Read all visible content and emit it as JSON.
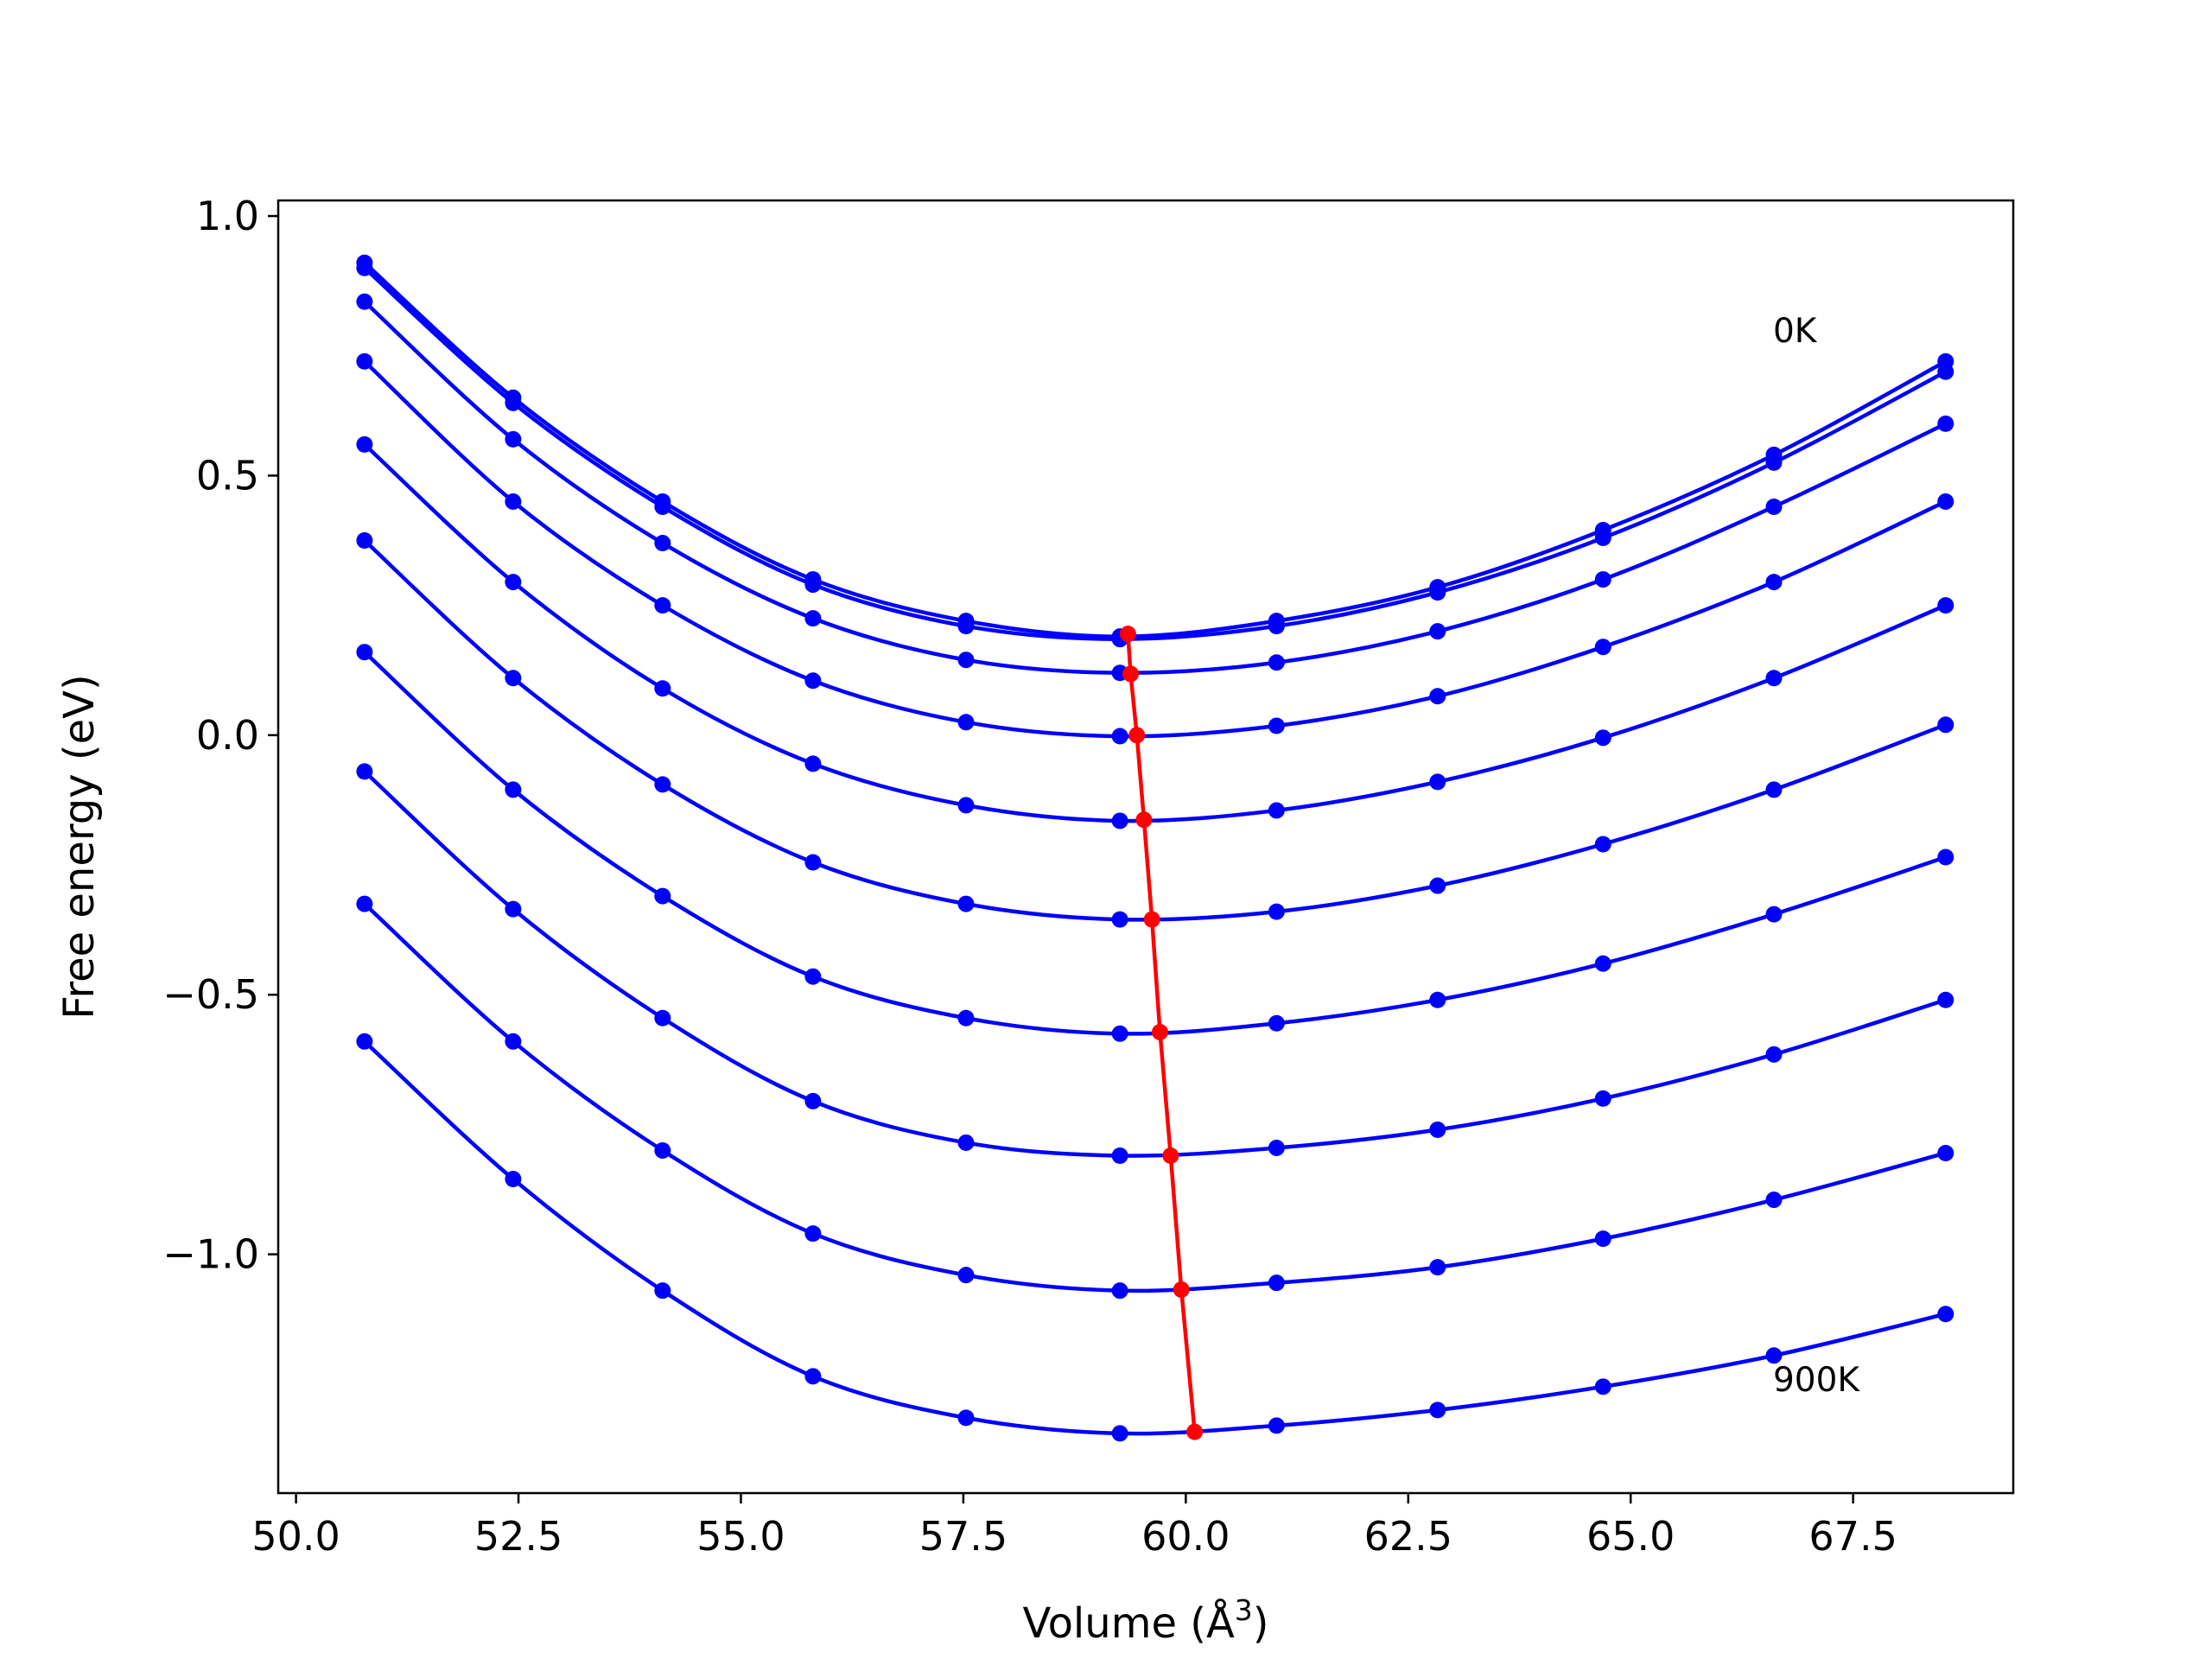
{
  "chart_data": {
    "type": "line",
    "title": "",
    "xlabel": "Volume (Å",
    "xlabel_sup": "3",
    "xlabel_suffix": ")",
    "ylabel": "Free energy (eV)",
    "xlim": [
      49.8,
      69.3
    ],
    "ylim": [
      -1.46,
      1.03
    ],
    "xticks": [
      50.0,
      52.5,
      55.0,
      57.5,
      60.0,
      62.5,
      65.0,
      67.5
    ],
    "xtick_labels": [
      "50.0",
      "52.5",
      "55.0",
      "57.5",
      "60.0",
      "62.5",
      "65.0",
      "67.5"
    ],
    "yticks": [
      1.0,
      0.5,
      0.0,
      -0.5,
      -1.0
    ],
    "ytick_labels": [
      "1.0",
      "0.5",
      "0.0",
      "−0.5",
      "−1.0"
    ],
    "grid": false,
    "legend": "none",
    "x": [
      50.77,
      52.44,
      54.12,
      55.81,
      57.53,
      59.26,
      61.02,
      62.83,
      64.69,
      66.61,
      68.54
    ],
    "series": [
      {
        "color": "#0000ff",
        "values": [
          0.91,
          0.65,
          0.45,
          0.3,
          0.22,
          0.19,
          0.22,
          0.285,
          0.395,
          0.54,
          0.72
        ]
      },
      {
        "color": "#0000ff",
        "values": [
          0.9,
          0.64,
          0.44,
          0.29,
          0.21,
          0.185,
          0.21,
          0.275,
          0.38,
          0.525,
          0.7
        ]
      },
      {
        "color": "#0000ff",
        "values": [
          0.835,
          0.57,
          0.37,
          0.225,
          0.145,
          0.12,
          0.14,
          0.2,
          0.3,
          0.44,
          0.6
        ]
      },
      {
        "color": "#0000ff",
        "values": [
          0.72,
          0.45,
          0.25,
          0.105,
          0.025,
          -0.002,
          0.018,
          0.075,
          0.17,
          0.295,
          0.45
        ]
      },
      {
        "color": "#0000ff",
        "values": [
          0.56,
          0.295,
          0.09,
          -0.055,
          -0.135,
          -0.165,
          -0.145,
          -0.09,
          -0.005,
          0.11,
          0.25
        ]
      },
      {
        "color": "#0000ff",
        "values": [
          0.375,
          0.11,
          -0.095,
          -0.245,
          -0.325,
          -0.355,
          -0.34,
          -0.29,
          -0.21,
          -0.105,
          0.02
        ]
      },
      {
        "color": "#0000ff",
        "values": [
          0.16,
          -0.105,
          -0.31,
          -0.465,
          -0.545,
          -0.575,
          -0.555,
          -0.51,
          -0.44,
          -0.345,
          -0.235
        ]
      },
      {
        "color": "#0000ff",
        "values": [
          -0.07,
          -0.335,
          -0.545,
          -0.705,
          -0.785,
          -0.81,
          -0.795,
          -0.76,
          -0.7,
          -0.615,
          -0.51
        ]
      },
      {
        "color": "#0000ff",
        "values": [
          -0.325,
          -0.59,
          -0.8,
          -0.96,
          -1.04,
          -1.07,
          -1.055,
          -1.025,
          -0.97,
          -0.895,
          -0.805
        ]
      },
      {
        "color": "#0000ff",
        "values": [
          -0.59,
          -0.855,
          -1.07,
          -1.235,
          -1.315,
          -1.345,
          -1.33,
          -1.3,
          -1.255,
          -1.195,
          -1.115
        ]
      }
    ],
    "equilibrium": {
      "color": "#ff0000",
      "x": [
        59.35,
        59.38,
        59.45,
        59.53,
        59.62,
        59.71,
        59.83,
        59.95,
        60.1
      ],
      "y": [
        0.195,
        0.118,
        0.0,
        -0.163,
        -0.355,
        -0.572,
        -0.81,
        -1.068,
        -1.342
      ]
    },
    "annotations": [
      {
        "text": "0K",
        "x": 66.6,
        "y": 0.78
      },
      {
        "text": "900K",
        "x": 66.6,
        "y": -1.24
      }
    ]
  }
}
